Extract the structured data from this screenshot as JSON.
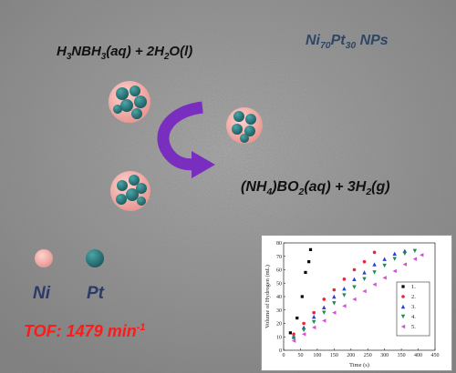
{
  "scheme": {
    "reactant": "H3NBH3(aq) + 2H2O(l)",
    "product": "(NH4)BO2(aq) + 3H2(g)",
    "catalyst_label": "Ni70Pt30 NPs",
    "legend_ni": "Ni",
    "legend_pt": "Pt",
    "tof": "TOF: 1479 min-1",
    "colors": {
      "ni": "#f0a8a8",
      "pt": "#2f7f80",
      "arrow": "#7a2ec0",
      "tof": "#ff1a1a"
    }
  },
  "chart_data": {
    "type": "scatter",
    "xlabel": "Time (s)",
    "ylabel": "Volume of Hydrogen (mL)",
    "xlim": [
      0,
      450
    ],
    "ylim": [
      0,
      80
    ],
    "xticks": [
      0,
      50,
      100,
      150,
      200,
      250,
      300,
      350,
      400,
      450
    ],
    "yticks": [
      0,
      10,
      20,
      30,
      40,
      50,
      60,
      70,
      80
    ],
    "legend_position": "right",
    "series": [
      {
        "name": "1.",
        "color": "#000000",
        "marker": "square",
        "x": [
          20,
          40,
          55,
          65,
          75,
          80
        ],
        "y": [
          13,
          24,
          40,
          58,
          66,
          75
        ]
      },
      {
        "name": "2.",
        "color": "#e8253a",
        "marker": "circle",
        "x": [
          30,
          60,
          90,
          120,
          150,
          180,
          210,
          240,
          270
        ],
        "y": [
          12,
          20,
          28,
          38,
          45,
          53,
          60,
          66,
          73
        ]
      },
      {
        "name": "3.",
        "color": "#2a3fd6",
        "marker": "triangle-up",
        "x": [
          30,
          60,
          90,
          120,
          150,
          180,
          210,
          240,
          270,
          300,
          330,
          360
        ],
        "y": [
          10,
          17,
          25,
          32,
          40,
          46,
          53,
          58,
          64,
          68,
          72,
          74
        ]
      },
      {
        "name": "4.",
        "color": "#1d8c4e",
        "marker": "triangle-down",
        "x": [
          30,
          60,
          90,
          120,
          150,
          180,
          210,
          240,
          270,
          300,
          330,
          360,
          390
        ],
        "y": [
          9,
          15,
          21,
          28,
          35,
          41,
          47,
          53,
          58,
          63,
          68,
          72,
          74
        ]
      },
      {
        "name": "5.",
        "color": "#d44fd4",
        "marker": "triangle-left",
        "x": [
          30,
          60,
          90,
          120,
          150,
          180,
          210,
          240,
          270,
          300,
          330,
          360,
          390,
          410
        ],
        "y": [
          7,
          12,
          17,
          22,
          28,
          33,
          38,
          44,
          49,
          54,
          59,
          64,
          68,
          71
        ]
      }
    ]
  }
}
